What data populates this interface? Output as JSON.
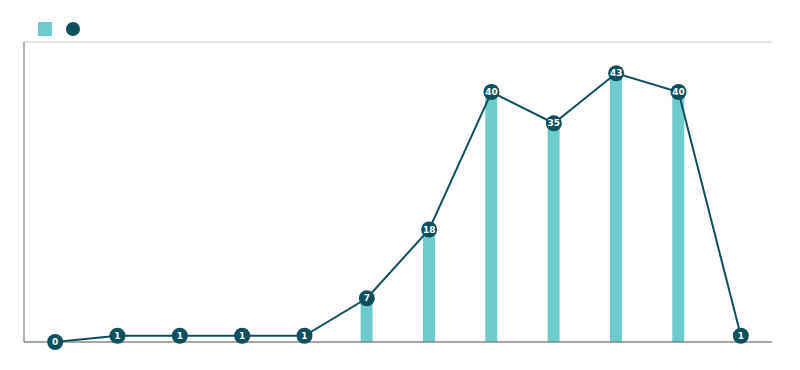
{
  "chart_data": {
    "type": "bar",
    "categories": [
      null,
      null,
      null,
      null,
      null,
      null,
      null,
      null,
      null,
      null,
      null,
      null
    ],
    "series": [
      {
        "type": "bar",
        "color": "#6dcbcc",
        "values": [
          0,
          0,
          0,
          2,
          2,
          7,
          18,
          40,
          35,
          43,
          40,
          0
        ]
      },
      {
        "type": "line",
        "color": "#0d4f5c",
        "marker": "circle",
        "data_labels": true,
        "values": [
          0,
          1,
          1,
          1,
          1,
          7,
          18,
          40,
          35,
          43,
          40,
          1
        ]
      }
    ],
    "ylim": [
      0,
      48
    ],
    "yticks": [
      0,
      6,
      12,
      18,
      24,
      30,
      36,
      42,
      48
    ],
    "grid": true,
    "legend": "upper left",
    "tick_labels": false
  }
}
